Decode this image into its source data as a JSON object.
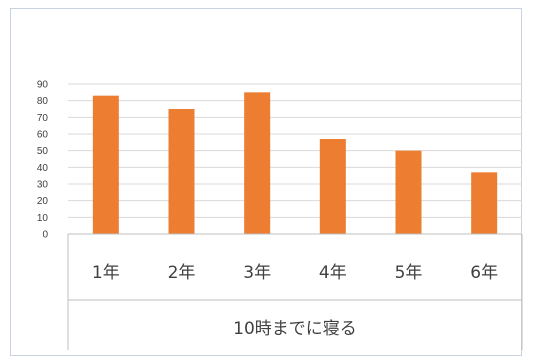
{
  "chart_data": {
    "type": "bar",
    "categories": [
      "1年",
      "2年",
      "3年",
      "4年",
      "5年",
      "6年"
    ],
    "values": [
      83,
      75,
      85,
      57,
      50,
      37
    ],
    "title": "",
    "xlabel": "10時までに寝る",
    "ylabel": "",
    "ylim": [
      0,
      90
    ],
    "yticks": [
      0,
      10,
      20,
      30,
      40,
      50,
      60,
      70,
      80,
      90
    ],
    "grid": true,
    "legend": "none",
    "colors": {
      "bar": "#ED7D31",
      "grid": "#D9D9D9",
      "axis_box": "#BFBFBF",
      "text": "#404040"
    }
  }
}
